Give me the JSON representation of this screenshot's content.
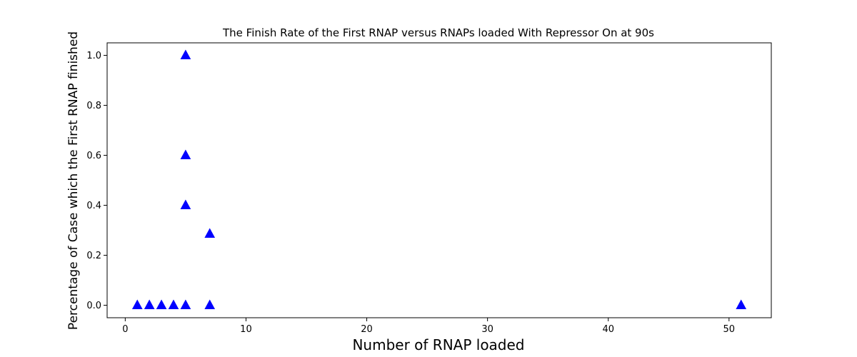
{
  "chart_data": {
    "type": "scatter",
    "title": "The Finish Rate of the First RNAP versus RNAPs loaded With Repressor On at 90s",
    "xlabel": "Number of RNAP loaded",
    "ylabel": "Percentage of Case which the First RNAP finished",
    "xlim": [
      -1.5,
      53.5
    ],
    "ylim": [
      -0.05,
      1.05
    ],
    "xticks": [
      0,
      10,
      20,
      30,
      40,
      50
    ],
    "yticks": [
      0.0,
      0.2,
      0.4,
      0.6,
      0.8,
      1.0
    ],
    "xtick_labels": [
      "0",
      "10",
      "20",
      "30",
      "40",
      "50"
    ],
    "ytick_labels": [
      "0.0",
      "0.2",
      "0.4",
      "0.6",
      "0.8",
      "1.0"
    ],
    "grid": false,
    "marker": "triangle-up",
    "color": "#0000ff",
    "points": [
      {
        "x": 1,
        "y": 0.0
      },
      {
        "x": 2,
        "y": 0.0
      },
      {
        "x": 3,
        "y": 0.0
      },
      {
        "x": 4,
        "y": 0.0
      },
      {
        "x": 5,
        "y": 0.0
      },
      {
        "x": 5,
        "y": 0.4
      },
      {
        "x": 5,
        "y": 0.6
      },
      {
        "x": 5,
        "y": 1.0
      },
      {
        "x": 7,
        "y": 0.0
      },
      {
        "x": 7,
        "y": 0.2857
      },
      {
        "x": 51,
        "y": 0.0
      }
    ]
  }
}
